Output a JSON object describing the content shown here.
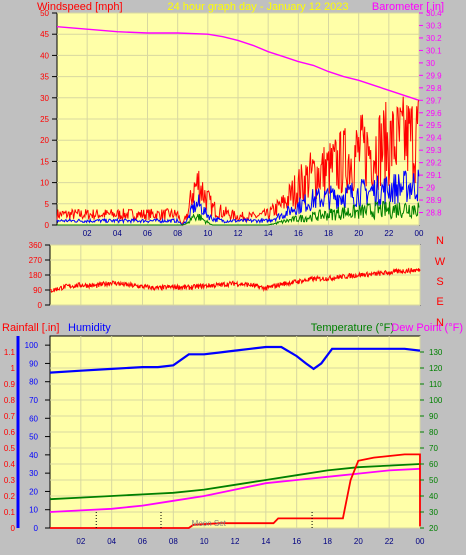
{
  "header": {
    "left": "Windspeed [mph]",
    "center": "24 hour graph day - January 12 2023",
    "right": "Barometer [.in]"
  },
  "colors": {
    "background": "#c0c0c0",
    "plot_bg": "#ffffa8",
    "grid": "#d8d8a0",
    "wind_max": "#ff0000",
    "wind_avg": "#0000ff",
    "wind_min": "#008000",
    "barometer": "#ff00ff",
    "direction": "#ff0000",
    "humidity": "#0000ff",
    "temperature": "#008000",
    "dew_point": "#ff00ff",
    "rain": "#ff0000",
    "title_yellow": "#ffff00",
    "moon_text": "#808080"
  },
  "x_ticks": [
    "02",
    "04",
    "06",
    "08",
    "10",
    "12",
    "14",
    "16",
    "18",
    "20",
    "22",
    "00"
  ],
  "chart_data": [
    {
      "type": "line",
      "title": "24 hour graph day - January 12 2023",
      "x_unit": "hour of day",
      "x_range": [
        0,
        24
      ],
      "left_axis": {
        "label": "Windspeed [mph]",
        "range": [
          0,
          50
        ],
        "ticks": [
          0,
          5,
          10,
          15,
          20,
          25,
          30,
          35,
          40,
          45,
          50
        ]
      },
      "right_axis": {
        "label": "Barometer [.in]",
        "range": [
          28.7,
          30.4
        ],
        "ticks": [
          "28.8",
          "28.9",
          "29",
          "29.1",
          "29.2",
          "29.3",
          "29.4",
          "29.5",
          "29.6",
          "29.7",
          "29.8",
          "29.9",
          "30",
          "30.1",
          "30.2",
          "30.3",
          "30.4"
        ]
      },
      "grid": true,
      "series": [
        {
          "axis": "right",
          "style": "barometer",
          "x": [
            0,
            2,
            4,
            6,
            8,
            10,
            11,
            12,
            13,
            14,
            15,
            16,
            17,
            18,
            19,
            20,
            21,
            22,
            23,
            24
          ],
          "y": [
            30.29,
            30.27,
            30.25,
            30.24,
            30.24,
            30.23,
            30.21,
            30.18,
            30.14,
            30.09,
            30.05,
            30.01,
            29.98,
            29.93,
            29.89,
            29.86,
            29.82,
            29.78,
            29.74,
            29.7
          ]
        },
        {
          "axis": "left",
          "style": "wind_max",
          "x": [
            0,
            8,
            8.3,
            8.7,
            9,
            9.4,
            9.8,
            10.3,
            11,
            12,
            13,
            14,
            15,
            16,
            17,
            18,
            19,
            20,
            21,
            22,
            23,
            24
          ],
          "y": [
            2.5,
            2.5,
            0,
            3,
            8,
            10,
            7,
            4,
            3,
            2,
            2,
            2.5,
            5,
            9,
            12,
            13,
            15,
            17,
            18,
            19,
            20,
            21
          ]
        },
        {
          "axis": "left",
          "style": "wind_avg",
          "x": [
            0,
            8,
            8.3,
            8.7,
            9,
            9.4,
            9.8,
            10.3,
            11,
            12,
            13,
            14,
            15,
            16,
            17,
            18,
            19,
            20,
            21,
            22,
            23,
            24
          ],
          "y": [
            1,
            1,
            0,
            1.5,
            4,
            5,
            3,
            1.5,
            1,
            1,
            1,
            1,
            2.5,
            4.5,
            6,
            6.5,
            7,
            7.5,
            8,
            8.5,
            9,
            9.5
          ]
        },
        {
          "axis": "left",
          "style": "wind_min",
          "x": [
            0,
            8,
            8.3,
            8.7,
            9,
            9.4,
            9.8,
            10.3,
            11,
            12,
            13,
            14,
            15,
            16,
            17,
            18,
            19,
            20,
            21,
            22,
            23,
            24
          ],
          "y": [
            0,
            0,
            0,
            0.5,
            2,
            2,
            1,
            0,
            0,
            0,
            0,
            0,
            0.8,
            1.5,
            2,
            2.5,
            3,
            3,
            3.5,
            3.5,
            4,
            4
          ]
        }
      ]
    },
    {
      "type": "line",
      "x_unit": "hour of day",
      "x_range": [
        0,
        24
      ],
      "left_axis": {
        "range": [
          0,
          360
        ],
        "ticks": [
          0,
          90,
          180,
          270,
          360
        ]
      },
      "right_labels": [
        "N",
        "W",
        "S",
        "E",
        "N"
      ],
      "grid": true,
      "series": [
        {
          "style": "direction",
          "x": [
            0,
            1,
            2,
            3,
            4,
            5,
            6,
            7,
            8,
            9,
            10,
            11,
            12,
            13,
            14,
            15,
            16,
            17,
            18,
            19,
            20,
            21,
            22,
            23,
            24
          ],
          "y": [
            85,
            110,
            120,
            115,
            135,
            120,
            110,
            100,
            110,
            105,
            115,
            120,
            130,
            120,
            100,
            125,
            140,
            155,
            160,
            170,
            180,
            185,
            195,
            205,
            210
          ]
        }
      ]
    },
    {
      "type": "line",
      "x_unit": "hour of day",
      "x_range": [
        0,
        24
      ],
      "left_axis_1": {
        "label": "Rainfall [.in]",
        "range": [
          0,
          1.2
        ],
        "ticks": [
          "0",
          "0.1",
          "0.2",
          "0.3",
          "0.4",
          "0.5",
          "0.6",
          "0.7",
          "0.8",
          "0.9",
          "1",
          "1.1"
        ]
      },
      "left_axis_2": {
        "label": "Humidity",
        "range": [
          0,
          105
        ],
        "ticks": [
          0,
          10,
          20,
          30,
          40,
          50,
          60,
          70,
          80,
          90,
          100
        ]
      },
      "right_axis": {
        "label": "Temperature (°F)",
        "label_2": "Dew Point (°F)",
        "range": [
          20,
          140
        ],
        "ticks": [
          20,
          30,
          40,
          50,
          60,
          70,
          80,
          90,
          100,
          110,
          120,
          130
        ]
      },
      "annotations": [
        "Moon Set"
      ],
      "grid": true,
      "series": [
        {
          "axis": "humidity",
          "style": "humidity",
          "x": [
            0,
            2,
            4,
            6,
            7,
            8,
            9,
            10,
            11,
            12,
            13,
            14,
            15,
            16,
            16.6,
            17.1,
            17.6,
            18.3,
            19,
            20,
            21,
            22,
            23,
            24
          ],
          "y": [
            85,
            86,
            87,
            88,
            88,
            89,
            95,
            95,
            96,
            97,
            98,
            99,
            99,
            94,
            90,
            87,
            90,
            98,
            98,
            98,
            98,
            98,
            98,
            97
          ]
        },
        {
          "axis": "right",
          "style": "temperature",
          "x": [
            0,
            2,
            4,
            6,
            8,
            10,
            12,
            14,
            16,
            18,
            20,
            22,
            24
          ],
          "y": [
            38,
            39,
            40,
            41,
            42,
            44,
            47,
            50,
            53,
            56,
            58,
            59,
            60
          ]
        },
        {
          "axis": "right",
          "style": "dew_point",
          "x": [
            0,
            2,
            4,
            6,
            8,
            10,
            12,
            14,
            16,
            18,
            20,
            22,
            24
          ],
          "y": [
            30,
            31,
            32,
            34,
            37,
            40,
            44,
            48,
            50,
            52,
            54,
            56,
            57
          ]
        },
        {
          "axis": "rain",
          "style": "rain",
          "x": [
            0,
            9,
            9.3,
            11,
            14.5,
            14.8,
            17,
            19,
            19.5,
            20,
            21,
            22,
            23,
            24,
            24,
            24
          ],
          "y": [
            0,
            0,
            0.02,
            0.03,
            0.03,
            0.06,
            0.06,
            0.06,
            0.3,
            0.42,
            0.44,
            0.45,
            0.46,
            0.46,
            0.45,
            0.01
          ]
        }
      ]
    }
  ]
}
